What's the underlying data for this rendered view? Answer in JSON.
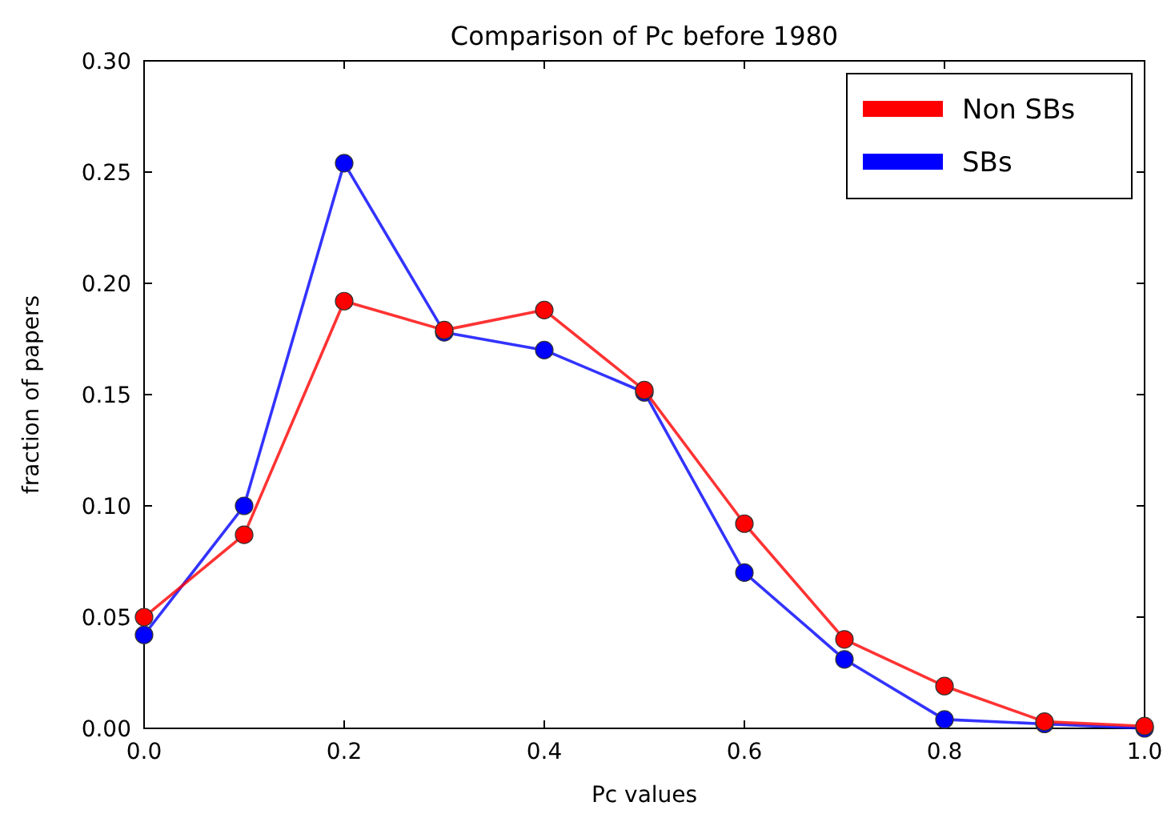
{
  "chart_data": {
    "type": "line",
    "title": "Comparison of Pc before 1980",
    "xlabel": "Pc values",
    "ylabel": "fraction of papers",
    "x": [
      0,
      0.1,
      0.2,
      0.3,
      0.4,
      0.5,
      0.6,
      0.7,
      0.8,
      0.9,
      1.0
    ],
    "series": [
      {
        "name": "Non SBs",
        "color": "#ff0000",
        "values": [
          0.05,
          0.087,
          0.192,
          0.179,
          0.188,
          0.152,
          0.092,
          0.04,
          0.019,
          0.003,
          0.001
        ]
      },
      {
        "name": "SBs",
        "color": "#0000ff",
        "values": [
          0.042,
          0.1,
          0.254,
          0.178,
          0.17,
          0.151,
          0.07,
          0.031,
          0.004,
          0.002,
          0.0
        ]
      }
    ],
    "xlim": [
      0,
      1.0
    ],
    "xticks": [
      {
        "value": 0,
        "label": "0.0"
      },
      0.2,
      0.4,
      0.6,
      0.8,
      {
        "value": 1.0,
        "label": "1.0"
      }
    ],
    "ylim": [
      0,
      0.3
    ],
    "yticks": [
      {
        "value": 0,
        "label": "0.00"
      },
      0.05,
      {
        "value": 0.1,
        "label": "0.10"
      },
      0.15,
      {
        "value": 0.2,
        "label": "0.20"
      },
      0.25,
      {
        "value": 0.3,
        "label": "0.30"
      }
    ],
    "legend": "top right",
    "marker": "circle",
    "line_style": "solid"
  }
}
